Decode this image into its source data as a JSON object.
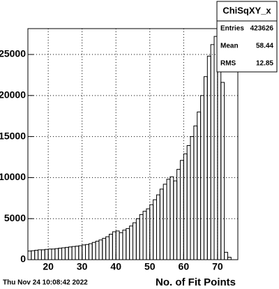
{
  "chart_data": {
    "type": "histogram",
    "stats_title": "ChiSqXY_x",
    "stats": [
      {
        "label": "Entries",
        "value": "423626"
      },
      {
        "label": "Mean",
        "value": "58.44"
      },
      {
        "label": "RMS",
        "value": "12.85"
      }
    ],
    "date": "Thu Nov 24 10:08:42 2022",
    "x_label": "No. of Fit Points",
    "bins": [
      14,
      15,
      16,
      17,
      18,
      19,
      20,
      21,
      22,
      23,
      24,
      25,
      26,
      27,
      28,
      29,
      30,
      31,
      32,
      33,
      34,
      35,
      36,
      37,
      38,
      39,
      40,
      41,
      42,
      43,
      44,
      45,
      46,
      47,
      48,
      49,
      50,
      51,
      52,
      53,
      54,
      55,
      56,
      57,
      58,
      59,
      60,
      61,
      62,
      63,
      64,
      65,
      66,
      67,
      68,
      69,
      70,
      71,
      72,
      73,
      74,
      75,
      76
    ],
    "values": [
      1050,
      1100,
      1150,
      1200,
      1200,
      1250,
      1300,
      1300,
      1350,
      1400,
      1450,
      1500,
      1550,
      1600,
      1650,
      1700,
      1800,
      1850,
      1950,
      2100,
      2250,
      2400,
      2600,
      2800,
      3100,
      3400,
      3500,
      3300,
      3600,
      3800,
      4100,
      4500,
      5000,
      5500,
      5900,
      6200,
      6700,
      7300,
      7900,
      8600,
      9200,
      9800,
      10100,
      9600,
      11000,
      12100,
      12900,
      13900,
      15000,
      16300,
      18000,
      20000,
      22300,
      24800,
      26200,
      27200,
      25600,
      21600,
      900,
      300,
      0,
      0
    ],
    "color": "#000000",
    "xlim": [
      14,
      76
    ],
    "xticks": [
      20,
      30,
      40,
      50,
      60,
      70
    ],
    "ylim": [
      0,
      28150
    ],
    "yticks": [
      0,
      5000,
      10000,
      15000,
      20000,
      25000
    ],
    "grid": true
  }
}
